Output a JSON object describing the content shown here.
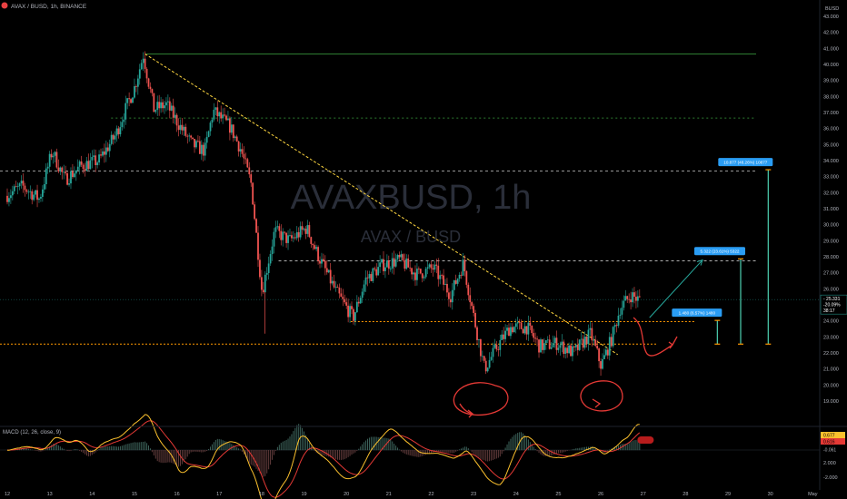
{
  "header": {
    "symbol_line": "AVAX / BUSD, 1h, BINANCE",
    "currency": "BUSD"
  },
  "watermark": {
    "main": "AVAXBUSD, 1h",
    "sub": "AVAX / BUSD"
  },
  "colors": {
    "background": "#000000",
    "up_candle": "#26a69a",
    "down_candle": "#ef5350",
    "resistance_green": "#2e7d32",
    "level_dashed": "#c8c8c8",
    "level_orange": "#ff9800",
    "trendline": "#ffd740",
    "annotation_red": "#e53935",
    "arrow_green": "#26a69a",
    "macd_line": "#fbc02d",
    "signal_line": "#e53935",
    "price_tag": "#2a9df4",
    "axis_text": "#b2b5be"
  },
  "price_axis": {
    "labels": [
      "43.000",
      "42.000",
      "41.000",
      "40.000",
      "39.000",
      "38.000",
      "37.000",
      "36.000",
      "35.000",
      "34.000",
      "33.000",
      "32.000",
      "31.000",
      "30.000",
      "29.000",
      "28.000",
      "27.000",
      "26.000",
      "25.000",
      "24.000",
      "23.000",
      "22.000",
      "21.000",
      "20.000",
      "19.000"
    ],
    "current_price": "25.331",
    "current_change": "-20.09%",
    "countdown": "38:17"
  },
  "macd": {
    "title": "MACD (12, 26, close, 9)",
    "axis_labels": [
      "2.000",
      "-2.000"
    ],
    "values": [
      "0.677",
      "0.616",
      "-0.061"
    ]
  },
  "time_axis": {
    "labels": [
      "12",
      "13",
      "14",
      "15",
      "16",
      "17",
      "18",
      "19",
      "20",
      "21",
      "22",
      "23",
      "24",
      "25",
      "26",
      "27",
      "28",
      "29",
      "30",
      "May"
    ]
  },
  "measurements": [
    {
      "label": "1.480 (6.57%) 1480"
    },
    {
      "label": "5.322 (23.61%) 5322"
    },
    {
      "label": "10.877 (48.26%) 10877"
    }
  ],
  "chart_data": {
    "type": "candlestick",
    "title": "AVAX / BUSD, 1h, BINANCE",
    "ylim": [
      18.5,
      43.0
    ],
    "x_range_days": [
      "12",
      "May"
    ],
    "grid": false,
    "levels": {
      "green_resistance": 40.65,
      "dashed_upper": 36.65,
      "dashed_mid": 33.35,
      "dashed_lower": 27.75,
      "orange_support": 23.95,
      "orange_bottom": 22.55
    },
    "trendline": {
      "from": {
        "day": 15.25,
        "price": 40.65
      },
      "to": {
        "day": 26.4,
        "price": 21.9
      }
    },
    "price_path": [
      {
        "day": 12.0,
        "price": 31.8
      },
      {
        "day": 12.4,
        "price": 32.4
      },
      {
        "day": 12.8,
        "price": 31.6
      },
      {
        "day": 13.1,
        "price": 34.6
      },
      {
        "day": 13.4,
        "price": 32.8
      },
      {
        "day": 13.8,
        "price": 33.7
      },
      {
        "day": 14.2,
        "price": 34.0
      },
      {
        "day": 14.6,
        "price": 35.6
      },
      {
        "day": 14.8,
        "price": 37.0
      },
      {
        "day": 15.05,
        "price": 38.6
      },
      {
        "day": 15.25,
        "price": 40.6
      },
      {
        "day": 15.5,
        "price": 37.2
      },
      {
        "day": 15.8,
        "price": 37.5
      },
      {
        "day": 16.1,
        "price": 36.2
      },
      {
        "day": 16.4,
        "price": 35.0
      },
      {
        "day": 16.7,
        "price": 34.6
      },
      {
        "day": 16.9,
        "price": 37.1
      },
      {
        "day": 17.3,
        "price": 36.1
      },
      {
        "day": 17.55,
        "price": 34.7
      },
      {
        "day": 17.8,
        "price": 32.5
      },
      {
        "day": 18.05,
        "price": 25.8
      },
      {
        "day": 18.35,
        "price": 29.6
      },
      {
        "day": 18.7,
        "price": 29.0
      },
      {
        "day": 19.1,
        "price": 29.8
      },
      {
        "day": 19.35,
        "price": 28.2
      },
      {
        "day": 19.8,
        "price": 25.8
      },
      {
        "day": 20.2,
        "price": 24.2
      },
      {
        "day": 20.5,
        "price": 26.6
      },
      {
        "day": 20.9,
        "price": 27.5
      },
      {
        "day": 21.3,
        "price": 27.8
      },
      {
        "day": 21.7,
        "price": 26.9
      },
      {
        "day": 22.1,
        "price": 27.3
      },
      {
        "day": 22.5,
        "price": 25.6
      },
      {
        "day": 22.8,
        "price": 27.6
      },
      {
        "day": 23.05,
        "price": 24.2
      },
      {
        "day": 23.3,
        "price": 21.0
      },
      {
        "day": 23.6,
        "price": 22.4
      },
      {
        "day": 23.9,
        "price": 23.6
      },
      {
        "day": 24.3,
        "price": 23.6
      },
      {
        "day": 24.6,
        "price": 22.4
      },
      {
        "day": 25.0,
        "price": 22.6
      },
      {
        "day": 25.4,
        "price": 22.0
      },
      {
        "day": 25.8,
        "price": 23.2
      },
      {
        "day": 26.05,
        "price": 21.2
      },
      {
        "day": 26.3,
        "price": 22.9
      },
      {
        "day": 26.5,
        "price": 24.8
      },
      {
        "day": 26.75,
        "price": 25.6
      },
      {
        "day": 26.95,
        "price": 25.3
      }
    ],
    "projection": {
      "from": {
        "day": 27.15,
        "price": 24.2
      },
      "to": {
        "day": 28.4,
        "price": 27.8
      }
    },
    "measures": [
      {
        "day": 28.75,
        "from": 22.55,
        "to": 24.03,
        "label": "1.480 (6.57%) 1480"
      },
      {
        "day": 29.3,
        "from": 22.55,
        "to": 27.87,
        "label": "5.322 (23.61%) 5322"
      },
      {
        "day": 29.95,
        "from": 22.55,
        "to": 33.43,
        "label": "10.877 (48.26%) 10877"
      }
    ],
    "macd_series": [
      {
        "name": "MACD",
        "color": "#fbc02d"
      },
      {
        "name": "Signal",
        "color": "#e53935"
      }
    ]
  }
}
